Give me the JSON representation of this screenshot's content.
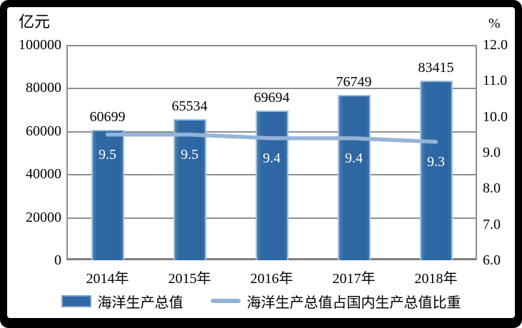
{
  "frame": {
    "background_color": "#000000",
    "panel_color": "#ffffff"
  },
  "chart_data": {
    "type": "bar",
    "subtype": "bar-line-combo-dual-axis",
    "categories": [
      "2014年",
      "2015年",
      "2016年",
      "2017年",
      "2018年"
    ],
    "series": [
      {
        "name": "海洋生产总值",
        "type": "bar",
        "axis": "left",
        "values": [
          60699,
          65534,
          69694,
          76749,
          83415
        ],
        "labels": [
          "60699",
          "65534",
          "69694",
          "76749",
          "83415"
        ],
        "color": "#2e68a6"
      },
      {
        "name": "海洋生产总值占国内生产总值比重",
        "type": "line",
        "axis": "right",
        "values": [
          9.5,
          9.5,
          9.4,
          9.4,
          9.3
        ],
        "labels": [
          "9.5",
          "9.5",
          "9.4",
          "9.4",
          "9.3"
        ],
        "color": "#95b3d7"
      }
    ],
    "left_axis": {
      "title": "亿元",
      "min": 0,
      "max": 100000,
      "step": 20000,
      "tick_labels": [
        "100000",
        "80000",
        "60000",
        "40000",
        "20000",
        "0"
      ]
    },
    "right_axis": {
      "title": "%",
      "min": 6.0,
      "max": 12.0,
      "step": 1.0,
      "tick_labels": [
        "12.0",
        "11.0",
        "10.0",
        "9.0",
        "8.0",
        "7.0",
        "6.0"
      ]
    },
    "grid": true,
    "legend_position": "bottom",
    "colors": {
      "gridline": "#8f8f8f",
      "plot_border": "#8c8c8c",
      "bar_highlight_edge": "#a6c0dd",
      "text": "#000000",
      "pct_label_text": "#ffffff"
    }
  }
}
